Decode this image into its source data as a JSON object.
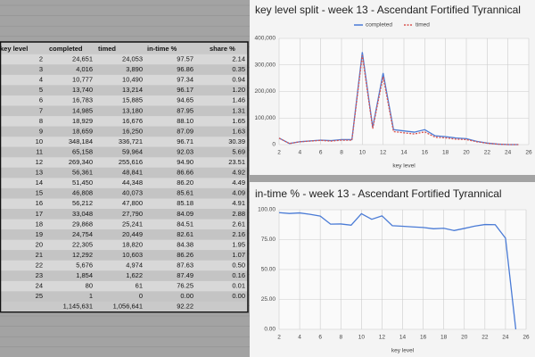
{
  "table": {
    "headers": [
      "key level",
      "completed",
      "timed",
      "in-time %",
      "share %"
    ],
    "rows": [
      [
        "2",
        "24,651",
        "24,053",
        "97.57",
        "2.14"
      ],
      [
        "3",
        "4,016",
        "3,890",
        "96.86",
        "0.35"
      ],
      [
        "4",
        "10,777",
        "10,490",
        "97.34",
        "0.94"
      ],
      [
        "5",
        "13,740",
        "13,214",
        "96.17",
        "1.20"
      ],
      [
        "6",
        "16,783",
        "15,885",
        "94.65",
        "1.46"
      ],
      [
        "7",
        "14,985",
        "13,180",
        "87.95",
        "1.31"
      ],
      [
        "8",
        "18,929",
        "16,676",
        "88.10",
        "1.65"
      ],
      [
        "9",
        "18,659",
        "16,250",
        "87.09",
        "1.63"
      ],
      [
        "10",
        "348,184",
        "336,721",
        "96.71",
        "30.39"
      ],
      [
        "11",
        "65,158",
        "59,964",
        "92.03",
        "5.69"
      ],
      [
        "12",
        "269,340",
        "255,616",
        "94.90",
        "23.51"
      ],
      [
        "13",
        "56,361",
        "48,841",
        "86.66",
        "4.92"
      ],
      [
        "14",
        "51,450",
        "44,348",
        "86.20",
        "4.49"
      ],
      [
        "15",
        "46,808",
        "40,073",
        "85.61",
        "4.09"
      ],
      [
        "16",
        "56,212",
        "47,800",
        "85.18",
        "4.91"
      ],
      [
        "17",
        "33,048",
        "27,790",
        "84.09",
        "2.88"
      ],
      [
        "18",
        "29,868",
        "25,241",
        "84.51",
        "2.61"
      ],
      [
        "19",
        "24,754",
        "20,449",
        "82.61",
        "2.16"
      ],
      [
        "20",
        "22,305",
        "18,820",
        "84.38",
        "1.95"
      ],
      [
        "21",
        "12,292",
        "10,603",
        "86.26",
        "1.07"
      ],
      [
        "22",
        "5,676",
        "4,974",
        "87.63",
        "0.50"
      ],
      [
        "23",
        "1,854",
        "1,622",
        "87.49",
        "0.16"
      ],
      [
        "24",
        "80",
        "61",
        "76.25",
        "0.01"
      ],
      [
        "25",
        "1",
        "0",
        "0.00",
        "0.00"
      ]
    ],
    "total": [
      "1,145,631",
      "1,056,641",
      "92.22"
    ]
  },
  "chart_data": [
    {
      "type": "line",
      "title": "key level split - week 13 - Ascendant Fortified Tyrannical",
      "x_label": "key level",
      "x": [
        2,
        3,
        4,
        5,
        6,
        7,
        8,
        9,
        10,
        11,
        12,
        13,
        14,
        15,
        16,
        17,
        18,
        19,
        20,
        21,
        22,
        23,
        24,
        25
      ],
      "xlim": [
        2,
        26
      ],
      "xticks": [
        2,
        4,
        6,
        8,
        10,
        12,
        14,
        16,
        18,
        20,
        22,
        24,
        26
      ],
      "ylim": [
        0,
        400000
      ],
      "yticks": [
        0,
        {
          "value": 100000,
          "label": "100,000"
        },
        {
          "value": 200000,
          "label": "200,000"
        },
        {
          "value": 300000,
          "label": "300,000"
        },
        {
          "value": 400000,
          "label": "400,000"
        }
      ],
      "grid": true,
      "legend": "top",
      "series": [
        {
          "name": "completed",
          "color": "#4a7bd6",
          "line_style": "solid",
          "values": [
            24651,
            4016,
            10777,
            13740,
            16783,
            14985,
            18929,
            18659,
            348184,
            65158,
            269340,
            56361,
            51450,
            46808,
            56212,
            33048,
            29868,
            24754,
            22305,
            12292,
            5676,
            1854,
            80,
            1
          ]
        },
        {
          "name": "timed",
          "color": "#d9534f",
          "line_style": "dashed",
          "values": [
            24053,
            3890,
            10490,
            13214,
            15885,
            13180,
            16676,
            16250,
            336721,
            59964,
            255616,
            48841,
            44348,
            40073,
            47800,
            27790,
            25241,
            20449,
            18820,
            10603,
            4974,
            1622,
            61,
            0
          ]
        }
      ]
    },
    {
      "type": "line",
      "title": "in-time % - week 13 - Ascendant Fortified Tyrannical",
      "x_label": "key level",
      "x": [
        2,
        3,
        4,
        5,
        6,
        7,
        8,
        9,
        10,
        11,
        12,
        13,
        14,
        15,
        16,
        17,
        18,
        19,
        20,
        21,
        22,
        23,
        24,
        25
      ],
      "xlim": [
        2,
        26
      ],
      "xticks": [
        2,
        4,
        6,
        8,
        10,
        12,
        14,
        16,
        18,
        20,
        22,
        24,
        26
      ],
      "ylim": [
        0,
        100
      ],
      "yticks": [
        {
          "value": 0,
          "label": "0.00"
        },
        {
          "value": 25,
          "label": "25.00"
        },
        {
          "value": 50,
          "label": "50.00"
        },
        {
          "value": 75,
          "label": "75.00"
        },
        {
          "value": 100,
          "label": "100.00"
        }
      ],
      "grid": true,
      "series": [
        {
          "color": "#4a7bd6",
          "line_style": "solid",
          "values": [
            97.57,
            96.86,
            97.34,
            96.17,
            94.65,
            87.95,
            88.1,
            87.09,
            96.71,
            92.03,
            94.9,
            86.66,
            86.2,
            85.61,
            85.18,
            84.09,
            84.51,
            82.61,
            84.38,
            86.26,
            87.63,
            87.49,
            76.25,
            0.0
          ]
        }
      ]
    }
  ]
}
